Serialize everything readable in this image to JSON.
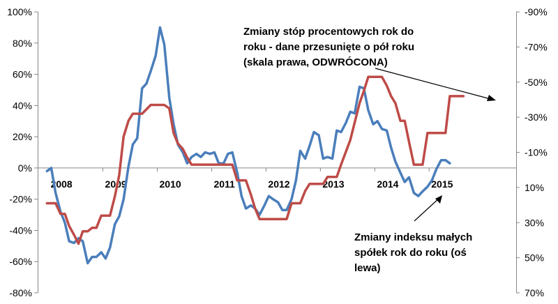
{
  "chart_data": {
    "type": "line",
    "x_unit": "year",
    "xlim": [
      2007.8,
      2016.6
    ],
    "x_tick_labels": [
      "2008",
      "2009",
      "2010",
      "2011",
      "2012",
      "2013",
      "2014",
      "2015"
    ],
    "y_left": {
      "ylim": [
        -80,
        100
      ],
      "ticks": [
        100,
        80,
        60,
        40,
        20,
        0,
        -20,
        -40,
        -60,
        -80
      ],
      "tick_labels": [
        "100%",
        "80%",
        "60%",
        "40%",
        "20%",
        "0%",
        "-20%",
        "-40%",
        "-60%",
        "-80%"
      ]
    },
    "y_right": {
      "inverted": true,
      "ylim": [
        -90,
        70
      ],
      "ticks": [
        -90,
        -70,
        -50,
        -30,
        -10,
        10,
        30,
        50,
        70
      ],
      "tick_labels": [
        "-90%",
        "-70%",
        "-50%",
        "-30%",
        "-10%",
        "10%",
        "30%",
        "50%",
        "70%"
      ]
    },
    "grid": false,
    "legend": "none",
    "annotations": [
      {
        "id": "rates",
        "lines": [
          "Zmiany stóp procentowych rok do",
          "roku - dane przesunięte o pół roku",
          "(skala prawa, ODWRÓCONA)"
        ],
        "points_to_series": "rates"
      },
      {
        "id": "index",
        "lines": [
          "Zmiany indeksu małych",
          "spółek rok do roku (oś",
          "lewa)"
        ],
        "points_to_series": "index"
      }
    ],
    "series": [
      {
        "id": "index",
        "axis": "left",
        "color": "#4a7ebb",
        "points": [
          [
            2007.97,
            -2
          ],
          [
            2008.05,
            0
          ],
          [
            2008.13,
            -16
          ],
          [
            2008.22,
            -28
          ],
          [
            2008.3,
            -35
          ],
          [
            2008.38,
            -47
          ],
          [
            2008.47,
            -48
          ],
          [
            2008.55,
            -45
          ],
          [
            2008.63,
            -47
          ],
          [
            2008.72,
            -61
          ],
          [
            2008.8,
            -57
          ],
          [
            2008.88,
            -57
          ],
          [
            2008.97,
            -54
          ],
          [
            2009.05,
            -58
          ],
          [
            2009.13,
            -51
          ],
          [
            2009.22,
            -36
          ],
          [
            2009.3,
            -31
          ],
          [
            2009.38,
            -20
          ],
          [
            2009.47,
            1
          ],
          [
            2009.55,
            15
          ],
          [
            2009.63,
            19
          ],
          [
            2009.72,
            51
          ],
          [
            2009.8,
            54
          ],
          [
            2009.88,
            62
          ],
          [
            2009.97,
            72
          ],
          [
            2010.05,
            90
          ],
          [
            2010.13,
            79
          ],
          [
            2010.22,
            45
          ],
          [
            2010.3,
            28
          ],
          [
            2010.38,
            15
          ],
          [
            2010.47,
            10
          ],
          [
            2010.55,
            3
          ],
          [
            2010.63,
            7
          ],
          [
            2010.72,
            9
          ],
          [
            2010.8,
            7
          ],
          [
            2010.88,
            10
          ],
          [
            2010.97,
            9
          ],
          [
            2011.05,
            10
          ],
          [
            2011.13,
            3
          ],
          [
            2011.22,
            3
          ],
          [
            2011.3,
            9
          ],
          [
            2011.38,
            10
          ],
          [
            2011.47,
            -3
          ],
          [
            2011.55,
            -18
          ],
          [
            2011.63,
            -26
          ],
          [
            2011.72,
            -24
          ],
          [
            2011.8,
            -26
          ],
          [
            2011.88,
            -30
          ],
          [
            2011.97,
            -24
          ],
          [
            2012.05,
            -18
          ],
          [
            2012.13,
            -20
          ],
          [
            2012.22,
            -22
          ],
          [
            2012.3,
            -27
          ],
          [
            2012.38,
            -27
          ],
          [
            2012.47,
            -20
          ],
          [
            2012.55,
            -8
          ],
          [
            2012.63,
            11
          ],
          [
            2012.72,
            6
          ],
          [
            2012.8,
            14
          ],
          [
            2012.88,
            23
          ],
          [
            2012.97,
            21
          ],
          [
            2013.05,
            6
          ],
          [
            2013.13,
            7
          ],
          [
            2013.22,
            6
          ],
          [
            2013.3,
            24
          ],
          [
            2013.38,
            23
          ],
          [
            2013.47,
            29
          ],
          [
            2013.55,
            36
          ],
          [
            2013.63,
            35
          ],
          [
            2013.72,
            52
          ],
          [
            2013.8,
            51
          ],
          [
            2013.88,
            37
          ],
          [
            2013.97,
            28
          ],
          [
            2014.05,
            30
          ],
          [
            2014.13,
            25
          ],
          [
            2014.22,
            24
          ],
          [
            2014.3,
            13
          ],
          [
            2014.38,
            4
          ],
          [
            2014.47,
            -3
          ],
          [
            2014.55,
            -9
          ],
          [
            2014.63,
            -6
          ],
          [
            2014.72,
            -16
          ],
          [
            2014.8,
            -18
          ],
          [
            2014.88,
            -15
          ],
          [
            2014.97,
            -12
          ],
          [
            2015.05,
            -8
          ],
          [
            2015.13,
            -1
          ],
          [
            2015.22,
            5
          ],
          [
            2015.3,
            5
          ],
          [
            2015.38,
            3
          ]
        ]
      },
      {
        "id": "rates",
        "axis": "right",
        "color": "#be4b48",
        "points": [
          [
            2007.97,
            19
          ],
          [
            2008.13,
            19
          ],
          [
            2008.22,
            25
          ],
          [
            2008.3,
            25
          ],
          [
            2008.38,
            32
          ],
          [
            2008.47,
            37
          ],
          [
            2008.55,
            42
          ],
          [
            2008.63,
            35
          ],
          [
            2008.72,
            35
          ],
          [
            2008.8,
            33
          ],
          [
            2008.88,
            33
          ],
          [
            2008.97,
            26
          ],
          [
            2009.13,
            26
          ],
          [
            2009.22,
            15
          ],
          [
            2009.3,
            3
          ],
          [
            2009.38,
            -19
          ],
          [
            2009.47,
            -28
          ],
          [
            2009.55,
            -32
          ],
          [
            2009.72,
            -32
          ],
          [
            2009.88,
            -37
          ],
          [
            2010.13,
            -37
          ],
          [
            2010.22,
            -35
          ],
          [
            2010.3,
            -21
          ],
          [
            2010.38,
            -15
          ],
          [
            2010.47,
            -12
          ],
          [
            2010.55,
            -7
          ],
          [
            2010.63,
            -3
          ],
          [
            2010.88,
            -3
          ],
          [
            2010.97,
            -3
          ],
          [
            2011.38,
            -3
          ],
          [
            2011.47,
            6
          ],
          [
            2011.63,
            6
          ],
          [
            2011.72,
            14
          ],
          [
            2011.8,
            22
          ],
          [
            2011.88,
            28
          ],
          [
            2012.38,
            28
          ],
          [
            2012.47,
            19
          ],
          [
            2012.63,
            19
          ],
          [
            2012.72,
            12
          ],
          [
            2012.8,
            8
          ],
          [
            2013.05,
            8
          ],
          [
            2013.13,
            4
          ],
          [
            2013.3,
            4
          ],
          [
            2013.38,
            -3
          ],
          [
            2013.55,
            -17
          ],
          [
            2013.63,
            -27
          ],
          [
            2013.72,
            -38
          ],
          [
            2013.8,
            -45
          ],
          [
            2013.88,
            -53
          ],
          [
            2014.13,
            -53
          ],
          [
            2014.22,
            -48
          ],
          [
            2014.3,
            -42
          ],
          [
            2014.38,
            -38
          ],
          [
            2014.47,
            -28
          ],
          [
            2014.55,
            -28
          ],
          [
            2014.63,
            -16
          ],
          [
            2014.72,
            -3
          ],
          [
            2014.88,
            -3
          ],
          [
            2014.97,
            -21
          ],
          [
            2015.3,
            -21
          ],
          [
            2015.38,
            -42
          ],
          [
            2015.63,
            -42
          ]
        ]
      }
    ]
  }
}
